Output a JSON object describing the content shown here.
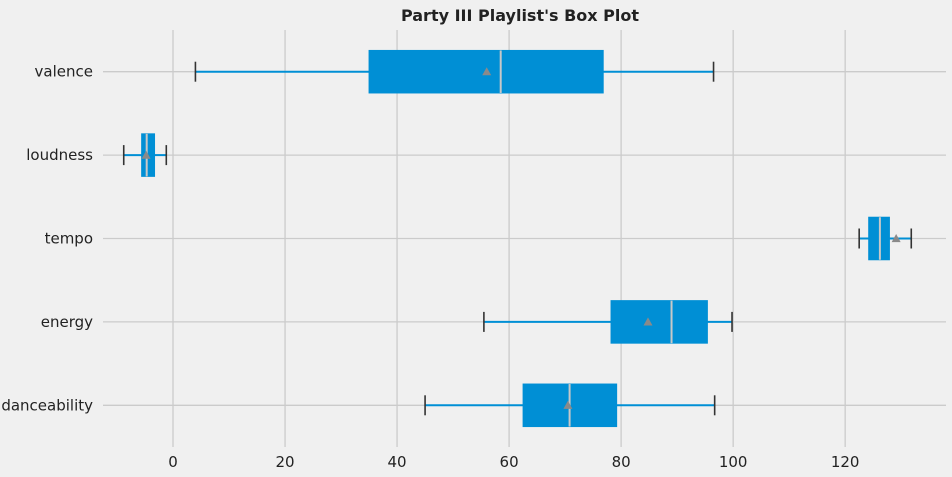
{
  "chart_data": {
    "type": "box",
    "title": "Party III Playlist's Box Plot",
    "orientation": "horizontal",
    "xlabel": "",
    "ylabel": "",
    "xlim": [
      -12.5,
      138
    ],
    "xticks": [
      0,
      20,
      40,
      60,
      80,
      100,
      120
    ],
    "grid": true,
    "categories": [
      "danceability",
      "energy",
      "tempo",
      "loudness",
      "valence"
    ],
    "boxes": [
      {
        "label": "danceability",
        "whislo": 45.0,
        "q1": 62.5,
        "med": 70.8,
        "q3": 79.2,
        "whishi": 96.7,
        "mean": 70.5
      },
      {
        "label": "energy",
        "whislo": 55.5,
        "q1": 78.2,
        "med": 89.0,
        "q3": 95.4,
        "whishi": 99.8,
        "mean": 84.8
      },
      {
        "label": "tempo",
        "whislo": 122.5,
        "q1": 124.2,
        "med": 126.2,
        "q3": 127.9,
        "whishi": 131.8,
        "mean": 129.1
      },
      {
        "label": "loudness",
        "whislo": -8.8,
        "q1": -5.6,
        "med": -4.7,
        "q3": -3.3,
        "whishi": -1.2,
        "mean": -4.8
      },
      {
        "label": "valence",
        "whislo": 4.0,
        "q1": 35.0,
        "med": 58.5,
        "q3": 76.8,
        "whishi": 96.5,
        "mean": 56.0
      }
    ],
    "colors": {
      "box": "#008fd5",
      "median": "#c8c8c8",
      "mean_marker": "#8a8a8a",
      "grid": "#cbcbcb",
      "background": "#f0f0f0",
      "whisker": "#008fd5",
      "cap": "#333333"
    }
  }
}
